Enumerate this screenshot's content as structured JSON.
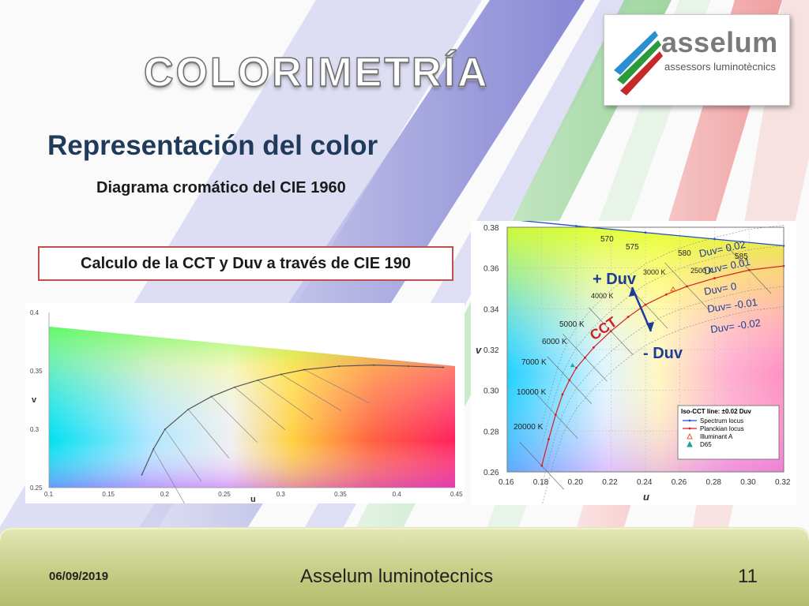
{
  "slide": {
    "title": "COLORIMETRÍA",
    "subtitle": "Representación del color",
    "subsubtitle": "Diagrama cromático del CIE 1960",
    "callout": "Calculo de la CCT y Duv a través de CIE 190"
  },
  "logo": {
    "name": "asselum",
    "tagline": "assessors luminotècnics"
  },
  "footer": {
    "date": "06/09/2019",
    "company": "Asselum luminotecnics",
    "page": "11"
  },
  "chart_data": [
    {
      "type": "scatter",
      "title": "",
      "xlabel": "u",
      "ylabel": "v",
      "xlim": [
        0.1,
        0.45
      ],
      "ylim": [
        0.25,
        0.4
      ],
      "x_ticks": [
        "0.1",
        "0.15",
        "0.2",
        "0.25",
        "0.3",
        "0.35",
        "0.4",
        "0.45"
      ],
      "y_ticks": [
        "0.25",
        "0.3",
        "0.35",
        "0.4"
      ],
      "grid": false,
      "series": [
        {
          "name": "",
          "x": [
            0.18,
            0.19,
            0.2,
            0.22,
            0.24,
            0.26,
            0.28,
            0.3,
            0.32,
            0.35,
            0.38,
            0.41,
            0.44
          ],
          "y": [
            0.261,
            0.283,
            0.3,
            0.317,
            0.328,
            0.336,
            0.342,
            0.347,
            0.351,
            0.354,
            0.355,
            0.354,
            0.353
          ]
        }
      ]
    },
    {
      "type": "scatter",
      "title": "",
      "xlabel": "u",
      "ylabel": "v",
      "xlim": [
        0.16,
        0.32
      ],
      "ylim": [
        0.26,
        0.38
      ],
      "x_ticks": [
        "0.16",
        "0.18",
        "0.20",
        "0.22",
        "0.24",
        "0.26",
        "0.28",
        "0.30",
        "0.32"
      ],
      "y_ticks": [
        "0.26",
        "0.28",
        "0.30",
        "0.32",
        "0.34",
        "0.36",
        "0.38"
      ],
      "grid": true,
      "legend": "bottom-right",
      "legend_title": "Iso-CCT line: ±0.02 Duv",
      "series": [
        {
          "name": "Spectrum locus",
          "color": "#2050c0",
          "x": [
            0.162,
            0.2,
            0.24,
            0.28,
            0.32
          ],
          "y": [
            0.3838,
            0.3806,
            0.3774,
            0.3742,
            0.3709
          ]
        },
        {
          "name": "Planckian locus",
          "color": "#d42020",
          "x": [
            0.18,
            0.184,
            0.188,
            0.192,
            0.196,
            0.2,
            0.205,
            0.21,
            0.22,
            0.23,
            0.24,
            0.252,
            0.264,
            0.28,
            0.3,
            0.32
          ],
          "y": [
            0.263,
            0.276,
            0.288,
            0.298,
            0.305,
            0.311,
            0.316,
            0.321,
            0.329,
            0.336,
            0.342,
            0.347,
            0.351,
            0.355,
            0.359,
            0.361
          ]
        },
        {
          "name": "Illuminant A",
          "color": "#e06020",
          "x": [
            0.256
          ],
          "y": [
            0.3495
          ]
        },
        {
          "name": "D65",
          "color": "#20a0a0",
          "x": [
            0.1978
          ],
          "y": [
            0.3122
          ]
        }
      ],
      "annotations": [
        "570",
        "575",
        "580",
        "585",
        "3000 K",
        "2500 K",
        "4000 K",
        "5000 K",
        "6000 K",
        "7000 K",
        "10000 K",
        "20000 K",
        "+ Duv",
        "- Duv",
        "CCT",
        "Duv= 0.02",
        "Duv= 0.01",
        "Duv= 0",
        "Duv= -0.01",
        "Duv= -0.02"
      ]
    }
  ],
  "colors": {
    "title_outline": "#6e6e6e",
    "subtitle": "#1f3a5a",
    "callout_border": "#c0504d",
    "stripe_blue": "#8c8cd8",
    "stripe_green": "#9fd29f",
    "stripe_red": "#ef9a9a",
    "footer": "#c8d08a"
  }
}
